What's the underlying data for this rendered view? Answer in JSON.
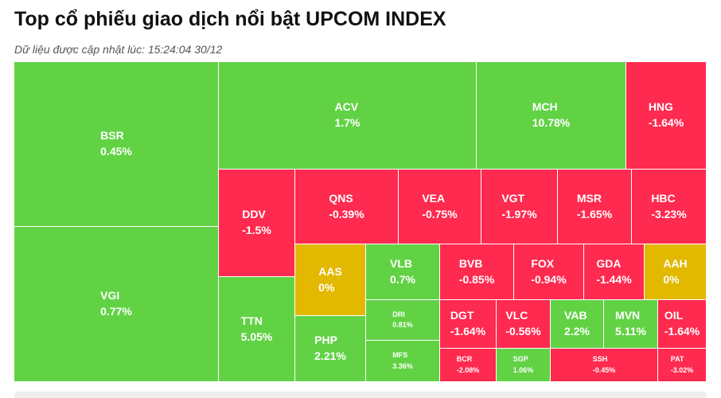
{
  "header": {
    "title": "Top cổ phiếu giao dịch nổi bật UPCOM INDEX",
    "subtitle": "Dữ liệu được cập nhật lúc: 15:24:04 30/12"
  },
  "colors": {
    "up": "#62d245",
    "down": "#ff2a4f",
    "flat": "#e2b800"
  },
  "chart_data": {
    "type": "treemap",
    "items": [
      {
        "ticker": "BSR",
        "change": "0.45%",
        "status": "up"
      },
      {
        "ticker": "VGI",
        "change": "0.77%",
        "status": "up"
      },
      {
        "ticker": "ACV",
        "change": "1.7%",
        "status": "up"
      },
      {
        "ticker": "MCH",
        "change": "10.78%",
        "status": "up"
      },
      {
        "ticker": "HNG",
        "change": "-1.64%",
        "status": "down"
      },
      {
        "ticker": "DDV",
        "change": "-1.5%",
        "status": "down"
      },
      {
        "ticker": "QNS",
        "change": "-0.39%",
        "status": "down"
      },
      {
        "ticker": "VEA",
        "change": "-0.75%",
        "status": "down"
      },
      {
        "ticker": "VGT",
        "change": "-1.97%",
        "status": "down"
      },
      {
        "ticker": "MSR",
        "change": "-1.65%",
        "status": "down"
      },
      {
        "ticker": "HBC",
        "change": "-3.23%",
        "status": "down"
      },
      {
        "ticker": "AAS",
        "change": "0%",
        "status": "flat"
      },
      {
        "ticker": "VLB",
        "change": "0.7%",
        "status": "up"
      },
      {
        "ticker": "BVB",
        "change": "-0.85%",
        "status": "down"
      },
      {
        "ticker": "FOX",
        "change": "-0.94%",
        "status": "down"
      },
      {
        "ticker": "GDA",
        "change": "-1.44%",
        "status": "down"
      },
      {
        "ticker": "AAH",
        "change": "0%",
        "status": "flat"
      },
      {
        "ticker": "TTN",
        "change": "5.05%",
        "status": "up"
      },
      {
        "ticker": "PHP",
        "change": "2.21%",
        "status": "up"
      },
      {
        "ticker": "DRI",
        "change": "0.81%",
        "status": "up"
      },
      {
        "ticker": "MFS",
        "change": "3.36%",
        "status": "up"
      },
      {
        "ticker": "DGT",
        "change": "-1.64%",
        "status": "down"
      },
      {
        "ticker": "VLC",
        "change": "-0.56%",
        "status": "down"
      },
      {
        "ticker": "VAB",
        "change": "2.2%",
        "status": "up"
      },
      {
        "ticker": "MVN",
        "change": "5.11%",
        "status": "up"
      },
      {
        "ticker": "OIL",
        "change": "-1.64%",
        "status": "down"
      },
      {
        "ticker": "BCR",
        "change": "-2.08%",
        "status": "down"
      },
      {
        "ticker": "SGP",
        "change": "1.06%",
        "status": "up"
      },
      {
        "ticker": "SSH",
        "change": "-0.45%",
        "status": "down"
      },
      {
        "ticker": "PAT",
        "change": "-3.02%",
        "status": "down"
      }
    ]
  }
}
